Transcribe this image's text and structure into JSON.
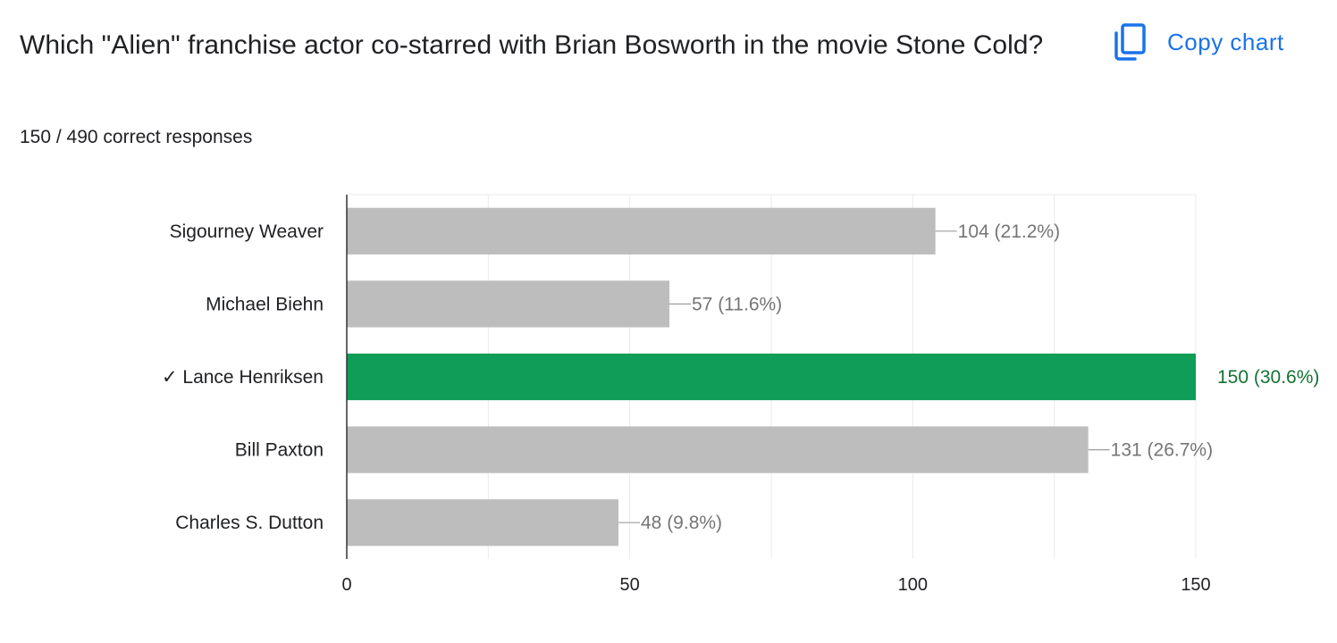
{
  "question": {
    "title": "Which \"Alien\" franchise actor co-starred with Brian Bosworth in the movie Stone Cold?",
    "summary": "150 / 490 correct responses"
  },
  "toolbar": {
    "copy_label": "Copy chart",
    "copy_icon": "copy-icon"
  },
  "colors": {
    "bar_default": "#bdbdbd",
    "bar_correct": "#0f9d58",
    "label_default": "#757575",
    "label_correct": "#137333",
    "accent": "#1a73e8"
  },
  "chart_data": {
    "type": "bar",
    "orientation": "horizontal",
    "categories": [
      "Sigourney Weaver",
      "Michael Biehn",
      "✓ Lance Henriksen",
      "Bill Paxton",
      "Charles S. Dutton"
    ],
    "values": [
      104,
      57,
      150,
      131,
      48
    ],
    "data_labels": [
      "104 (21.2%)",
      "57 (11.6%)",
      "150 (30.6%)",
      "131 (26.7%)",
      "48 (9.8%)"
    ],
    "correct_index": 2,
    "xlim": [
      0,
      150
    ],
    "xticks": [
      0,
      50,
      100,
      150
    ],
    "grid": true
  }
}
